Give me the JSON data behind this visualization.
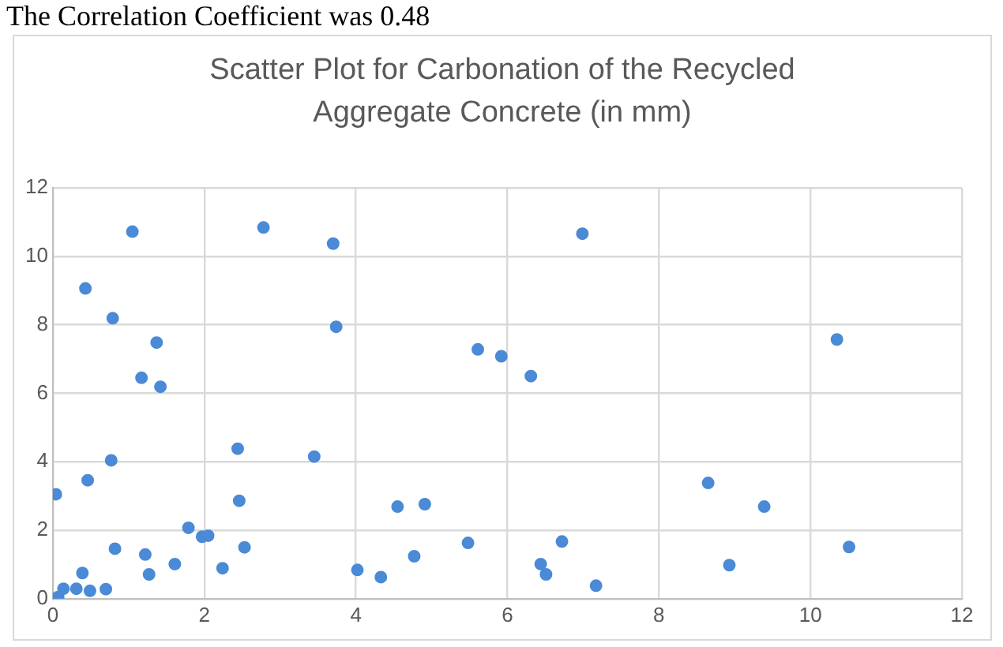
{
  "chart_data": {
    "type": "scatter",
    "title": "Scatter Plot for Carbonation of the Recycled Aggregate Concrete  (in mm)",
    "annotations": [
      "The Correlation Coefficient was 0.48"
    ],
    "x": [
      0,
      0.07,
      0.04,
      0.14,
      0.31,
      0.49,
      0.7,
      0.39,
      1.27,
      1.22,
      0.82,
      1.61,
      2.24,
      1.79,
      1.97,
      2.05,
      2.53,
      0.46,
      0.77,
      2.44,
      3.45,
      2.46,
      1.05,
      2.78,
      3.7,
      3.74,
      0.43,
      0.79,
      1.37,
      1.17,
      1.42,
      4.02,
      4.33,
      4.77,
      4.55,
      4.91,
      5.48,
      5.61,
      5.92,
      6.31,
      6.99,
      6.44,
      6.51,
      6.72,
      7.17,
      8.65,
      9.39,
      8.93,
      10.35,
      10.51
    ],
    "series": [
      {
        "color": "#4a8ad6",
        "values": [
          0,
          0.05,
          3.05,
          0.29,
          0.29,
          0.23,
          0.28,
          0.75,
          0.71,
          1.29,
          1.46,
          1.01,
          0.89,
          2.07,
          1.81,
          1.84,
          1.5,
          3.46,
          4.04,
          4.38,
          4.15,
          2.86,
          10.72,
          10.84,
          10.37,
          7.94,
          9.06,
          8.19,
          7.48,
          6.45,
          6.19,
          0.84,
          0.63,
          1.24,
          2.69,
          2.76,
          1.63,
          7.28,
          7.08,
          6.5,
          10.66,
          1.01,
          0.71,
          1.67,
          0.38,
          3.38,
          2.69,
          0.98,
          7.57,
          1.51
        ]
      }
    ],
    "xlim": [
      0,
      12
    ],
    "xticks": [
      0,
      2,
      4,
      6,
      8,
      10,
      12
    ],
    "ylim": [
      0,
      12
    ],
    "yticks": [
      0,
      2,
      4,
      6,
      8,
      10,
      12
    ],
    "grid": true,
    "legend": false,
    "marker": "circle"
  }
}
